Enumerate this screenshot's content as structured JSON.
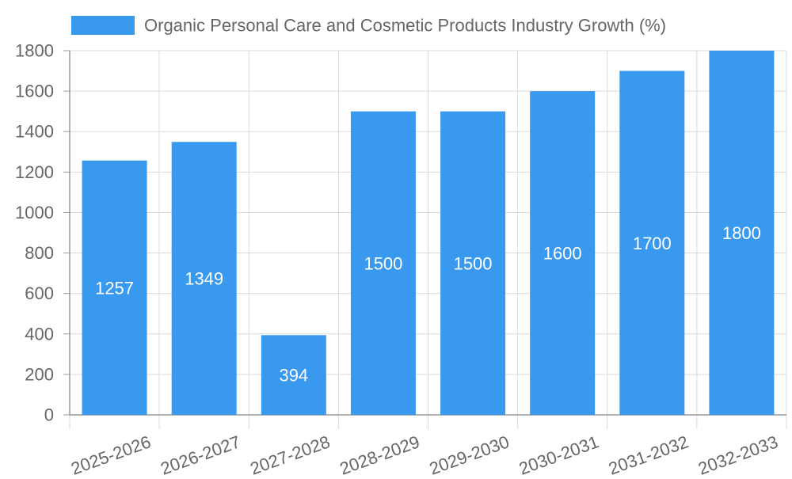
{
  "chart_data": {
    "type": "bar",
    "legend": {
      "label": "Organic Personal Care and Cosmetic Products Industry Growth (%)",
      "color": "#3899ee",
      "position": "top"
    },
    "categories": [
      "2025-2026",
      "2026-2027",
      "2027-2028",
      "2028-2029",
      "2029-2030",
      "2030-2031",
      "2031-2032",
      "2032-2033"
    ],
    "values": [
      1257,
      1349,
      394,
      1500,
      1500,
      1600,
      1700,
      1800
    ],
    "data_labels": [
      "1257",
      "1349",
      "394",
      "1500",
      "1500",
      "1600",
      "1700",
      "1800"
    ],
    "ylim": [
      0,
      1800
    ],
    "y_ticks": [
      0,
      200,
      400,
      600,
      800,
      1000,
      1200,
      1400,
      1600,
      1800
    ],
    "y_tick_labels": [
      "0",
      "200",
      "400",
      "600",
      "800",
      "1000",
      "1200",
      "1400",
      "1600",
      "1800"
    ],
    "grid": true,
    "colors": {
      "bar": "#3899ee",
      "grid": "#d9d9d9",
      "axis": "#999999",
      "tick_text": "#666666",
      "data_label": "#ffffff"
    }
  }
}
